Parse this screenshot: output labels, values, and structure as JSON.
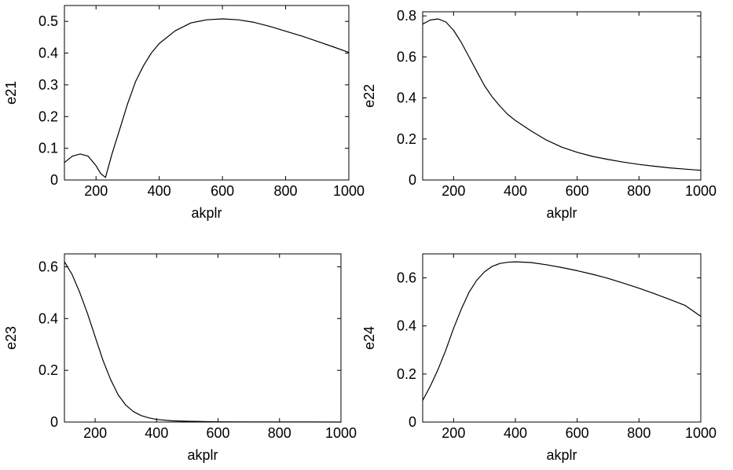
{
  "chart_data": [
    {
      "type": "line",
      "xlabel": "akplr",
      "ylabel": "e21",
      "xlim": [
        100,
        1000
      ],
      "ylim": [
        0,
        0.55
      ],
      "xticks": [
        200,
        400,
        600,
        800,
        1000
      ],
      "yticks": [
        0,
        0.1,
        0.2,
        0.3,
        0.4,
        0.5
      ],
      "ytick_labels": [
        "0",
        "0.1",
        "0.2",
        "0.3",
        "0.4",
        "0.5"
      ],
      "grid": false,
      "x": [
        100,
        125,
        150,
        175,
        200,
        215,
        230,
        250,
        275,
        300,
        325,
        350,
        375,
        400,
        450,
        500,
        550,
        600,
        650,
        700,
        750,
        800,
        850,
        900,
        950,
        1000
      ],
      "y": [
        0.055,
        0.075,
        0.082,
        0.075,
        0.045,
        0.02,
        0.008,
        0.08,
        0.16,
        0.24,
        0.31,
        0.36,
        0.4,
        0.43,
        0.47,
        0.495,
        0.505,
        0.508,
        0.505,
        0.497,
        0.484,
        0.469,
        0.454,
        0.437,
        0.42,
        0.402
      ]
    },
    {
      "type": "line",
      "xlabel": "akplr",
      "ylabel": "e22",
      "xlim": [
        100,
        1000
      ],
      "ylim": [
        0,
        0.82
      ],
      "xticks": [
        200,
        400,
        600,
        800,
        1000
      ],
      "yticks": [
        0,
        0.2,
        0.4,
        0.6,
        0.8
      ],
      "ytick_labels": [
        "0",
        "0.2",
        "0.4",
        "0.6",
        "0.8"
      ],
      "grid": false,
      "x": [
        100,
        125,
        150,
        175,
        200,
        225,
        250,
        275,
        300,
        325,
        350,
        375,
        400,
        450,
        500,
        550,
        600,
        650,
        700,
        750,
        800,
        850,
        900,
        950,
        1000
      ],
      "y": [
        0.76,
        0.78,
        0.785,
        0.77,
        0.73,
        0.67,
        0.6,
        0.53,
        0.46,
        0.405,
        0.36,
        0.32,
        0.29,
        0.24,
        0.195,
        0.16,
        0.135,
        0.115,
        0.1,
        0.087,
        0.076,
        0.067,
        0.059,
        0.053,
        0.047
      ]
    },
    {
      "type": "line",
      "xlabel": "akplr",
      "ylabel": "e23",
      "xlim": [
        100,
        1000
      ],
      "ylim": [
        0,
        0.65
      ],
      "xticks": [
        200,
        400,
        600,
        800,
        1000
      ],
      "yticks": [
        0,
        0.2,
        0.4,
        0.6
      ],
      "ytick_labels": [
        "0",
        "0.2",
        "0.4",
        "0.6"
      ],
      "grid": false,
      "x": [
        100,
        125,
        150,
        175,
        200,
        225,
        250,
        275,
        300,
        325,
        350,
        375,
        400,
        450,
        500,
        550,
        600,
        700,
        800,
        900,
        1000
      ],
      "y": [
        0.62,
        0.57,
        0.5,
        0.42,
        0.33,
        0.24,
        0.165,
        0.105,
        0.065,
        0.04,
        0.025,
        0.016,
        0.01,
        0.005,
        0.003,
        0.002,
        0.001,
        0.0005,
        0.0003,
        0.0002,
        0.0001
      ]
    },
    {
      "type": "line",
      "xlabel": "akplr",
      "ylabel": "e24",
      "xlim": [
        100,
        1000
      ],
      "ylim": [
        0,
        0.7
      ],
      "xticks": [
        200,
        400,
        600,
        800,
        1000
      ],
      "yticks": [
        0,
        0.2,
        0.4,
        0.6
      ],
      "ytick_labels": [
        "0",
        "0.2",
        "0.4",
        "0.6"
      ],
      "grid": false,
      "x": [
        100,
        125,
        150,
        175,
        200,
        225,
        250,
        275,
        300,
        325,
        350,
        375,
        400,
        450,
        500,
        550,
        600,
        650,
        700,
        750,
        800,
        850,
        900,
        950,
        1000
      ],
      "y": [
        0.09,
        0.15,
        0.22,
        0.3,
        0.39,
        0.47,
        0.54,
        0.59,
        0.625,
        0.648,
        0.66,
        0.665,
        0.667,
        0.664,
        0.655,
        0.643,
        0.63,
        0.615,
        0.598,
        0.578,
        0.557,
        0.534,
        0.51,
        0.485,
        0.44
      ]
    }
  ]
}
